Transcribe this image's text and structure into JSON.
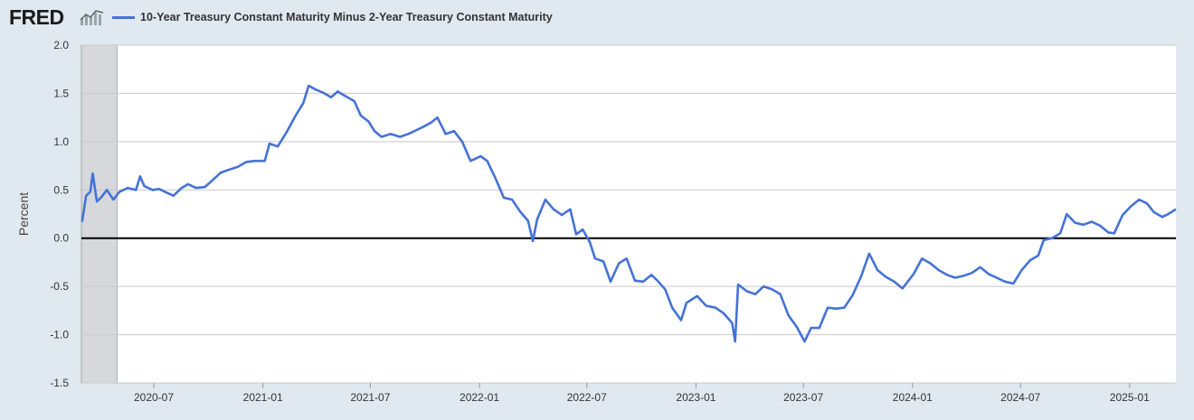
{
  "brand": {
    "logo_text": "FRED",
    "logo_icon": "line-chart-icon"
  },
  "chart_data": {
    "type": "line",
    "title": "",
    "legend": [
      "10-Year Treasury Constant Maturity Minus 2-Year Treasury Constant Maturity"
    ],
    "xlabel": "",
    "ylabel": "Percent",
    "ylim": [
      -1.5,
      2.0
    ],
    "xlim": [
      "2020-03-01",
      "2025-03-20"
    ],
    "y_ticks": [
      "2.0",
      "1.5",
      "1.0",
      "0.5",
      "0.0",
      "-0.5",
      "-1.0",
      "-1.5"
    ],
    "x_ticks": [
      "2020-07",
      "2021-01",
      "2021-07",
      "2022-01",
      "2022-07",
      "2023-01",
      "2023-07",
      "2024-01",
      "2024-07",
      "2025-01"
    ],
    "recession_shading": [
      "2020-03-01",
      "2020-04-30"
    ],
    "zero_line": true,
    "grid": true,
    "legend_position": "top-left",
    "colors": {
      "series": "#4572d6",
      "recession": "#d6d8db",
      "grid": "#c8c8c8",
      "zero": "#000000"
    },
    "series": [
      {
        "name": "10-Year Treasury Constant Maturity Minus 2-Year Treasury Constant Maturity",
        "points": [
          [
            "2020-03-02",
            0.17
          ],
          [
            "2020-03-09",
            0.44
          ],
          [
            "2020-03-16",
            0.48
          ],
          [
            "2020-03-20",
            0.67
          ],
          [
            "2020-03-27",
            0.38
          ],
          [
            "2020-04-03",
            0.42
          ],
          [
            "2020-04-13",
            0.5
          ],
          [
            "2020-04-24",
            0.4
          ],
          [
            "2020-05-04",
            0.48
          ],
          [
            "2020-05-18",
            0.52
          ],
          [
            "2020-06-01",
            0.5
          ],
          [
            "2020-06-08",
            0.64
          ],
          [
            "2020-06-15",
            0.54
          ],
          [
            "2020-06-29",
            0.5
          ],
          [
            "2020-07-10",
            0.51
          ],
          [
            "2020-07-20",
            0.48
          ],
          [
            "2020-08-03",
            0.44
          ],
          [
            "2020-08-17",
            0.52
          ],
          [
            "2020-08-28",
            0.56
          ],
          [
            "2020-09-10",
            0.52
          ],
          [
            "2020-09-25",
            0.53
          ],
          [
            "2020-10-08",
            0.6
          ],
          [
            "2020-10-22",
            0.68
          ],
          [
            "2020-11-05",
            0.71
          ],
          [
            "2020-11-20",
            0.74
          ],
          [
            "2020-12-04",
            0.79
          ],
          [
            "2020-12-18",
            0.8
          ],
          [
            "2021-01-04",
            0.8
          ],
          [
            "2021-01-12",
            0.98
          ],
          [
            "2021-01-26",
            0.95
          ],
          [
            "2021-02-10",
            1.1
          ],
          [
            "2021-02-25",
            1.27
          ],
          [
            "2021-03-10",
            1.4
          ],
          [
            "2021-03-19",
            1.58
          ],
          [
            "2021-03-31",
            1.54
          ],
          [
            "2021-04-12",
            1.51
          ],
          [
            "2021-04-26",
            1.46
          ],
          [
            "2021-05-07",
            1.52
          ],
          [
            "2021-05-18",
            1.48
          ],
          [
            "2021-06-04",
            1.42
          ],
          [
            "2021-06-15",
            1.27
          ],
          [
            "2021-06-28",
            1.21
          ],
          [
            "2021-07-08",
            1.11
          ],
          [
            "2021-07-20",
            1.05
          ],
          [
            "2021-08-04",
            1.08
          ],
          [
            "2021-08-20",
            1.05
          ],
          [
            "2021-09-03",
            1.08
          ],
          [
            "2021-09-17",
            1.12
          ],
          [
            "2021-09-30",
            1.16
          ],
          [
            "2021-10-12",
            1.2
          ],
          [
            "2021-10-22",
            1.25
          ],
          [
            "2021-11-05",
            1.08
          ],
          [
            "2021-11-19",
            1.11
          ],
          [
            "2021-12-03",
            1.0
          ],
          [
            "2021-12-17",
            0.8
          ],
          [
            "2022-01-03",
            0.85
          ],
          [
            "2022-01-14",
            0.8
          ],
          [
            "2022-01-28",
            0.62
          ],
          [
            "2022-02-11",
            0.42
          ],
          [
            "2022-02-25",
            0.4
          ],
          [
            "2022-03-10",
            0.28
          ],
          [
            "2022-03-24",
            0.18
          ],
          [
            "2022-04-01",
            -0.03
          ],
          [
            "2022-04-08",
            0.19
          ],
          [
            "2022-04-22",
            0.4
          ],
          [
            "2022-05-06",
            0.3
          ],
          [
            "2022-05-20",
            0.24
          ],
          [
            "2022-06-03",
            0.3
          ],
          [
            "2022-06-13",
            0.04
          ],
          [
            "2022-06-24",
            0.09
          ],
          [
            "2022-07-06",
            -0.04
          ],
          [
            "2022-07-15",
            -0.21
          ],
          [
            "2022-07-29",
            -0.24
          ],
          [
            "2022-08-10",
            -0.45
          ],
          [
            "2022-08-24",
            -0.26
          ],
          [
            "2022-09-06",
            -0.21
          ],
          [
            "2022-09-20",
            -0.44
          ],
          [
            "2022-10-04",
            -0.45
          ],
          [
            "2022-10-18",
            -0.38
          ],
          [
            "2022-10-28",
            -0.44
          ],
          [
            "2022-11-10",
            -0.53
          ],
          [
            "2022-11-22",
            -0.72
          ],
          [
            "2022-12-07",
            -0.85
          ],
          [
            "2022-12-16",
            -0.67
          ],
          [
            "2023-01-03",
            -0.6
          ],
          [
            "2023-01-18",
            -0.7
          ],
          [
            "2023-02-03",
            -0.72
          ],
          [
            "2023-02-17",
            -0.78
          ],
          [
            "2023-03-03",
            -0.88
          ],
          [
            "2023-03-08",
            -1.07
          ],
          [
            "2023-03-13",
            -0.48
          ],
          [
            "2023-03-28",
            -0.55
          ],
          [
            "2023-04-11",
            -0.58
          ],
          [
            "2023-04-25",
            -0.5
          ],
          [
            "2023-05-09",
            -0.53
          ],
          [
            "2023-05-23",
            -0.58
          ],
          [
            "2023-06-06",
            -0.8
          ],
          [
            "2023-06-20",
            -0.92
          ],
          [
            "2023-07-03",
            -1.07
          ],
          [
            "2023-07-14",
            -0.93
          ],
          [
            "2023-07-28",
            -0.93
          ],
          [
            "2023-08-11",
            -0.72
          ],
          [
            "2023-08-25",
            -0.73
          ],
          [
            "2023-09-08",
            -0.72
          ],
          [
            "2023-09-22",
            -0.59
          ],
          [
            "2023-10-06",
            -0.4
          ],
          [
            "2023-10-20",
            -0.16
          ],
          [
            "2023-11-03",
            -0.33
          ],
          [
            "2023-11-17",
            -0.4
          ],
          [
            "2023-12-01",
            -0.45
          ],
          [
            "2023-12-15",
            -0.52
          ],
          [
            "2024-01-03",
            -0.37
          ],
          [
            "2024-01-17",
            -0.21
          ],
          [
            "2024-01-31",
            -0.26
          ],
          [
            "2024-02-14",
            -0.33
          ],
          [
            "2024-02-28",
            -0.38
          ],
          [
            "2024-03-13",
            -0.41
          ],
          [
            "2024-03-27",
            -0.39
          ],
          [
            "2024-04-10",
            -0.36
          ],
          [
            "2024-04-24",
            -0.3
          ],
          [
            "2024-05-08",
            -0.37
          ],
          [
            "2024-05-22",
            -0.41
          ],
          [
            "2024-06-05",
            -0.45
          ],
          [
            "2024-06-19",
            -0.47
          ],
          [
            "2024-07-03",
            -0.33
          ],
          [
            "2024-07-17",
            -0.23
          ],
          [
            "2024-07-31",
            -0.18
          ],
          [
            "2024-08-09",
            -0.02
          ],
          [
            "2024-08-23",
            0.0
          ],
          [
            "2024-09-06",
            0.05
          ],
          [
            "2024-09-17",
            0.25
          ],
          [
            "2024-10-01",
            0.16
          ],
          [
            "2024-10-15",
            0.14
          ],
          [
            "2024-10-29",
            0.17
          ],
          [
            "2024-11-12",
            0.13
          ],
          [
            "2024-11-26",
            0.06
          ],
          [
            "2024-12-06",
            0.05
          ],
          [
            "2024-12-20",
            0.24
          ],
          [
            "2025-01-03",
            0.33
          ],
          [
            "2025-01-17",
            0.4
          ],
          [
            "2025-01-30",
            0.36
          ],
          [
            "2025-02-11",
            0.27
          ],
          [
            "2025-02-25",
            0.22
          ],
          [
            "2025-03-07",
            0.25
          ],
          [
            "2025-03-20",
            0.3
          ]
        ]
      }
    ]
  }
}
